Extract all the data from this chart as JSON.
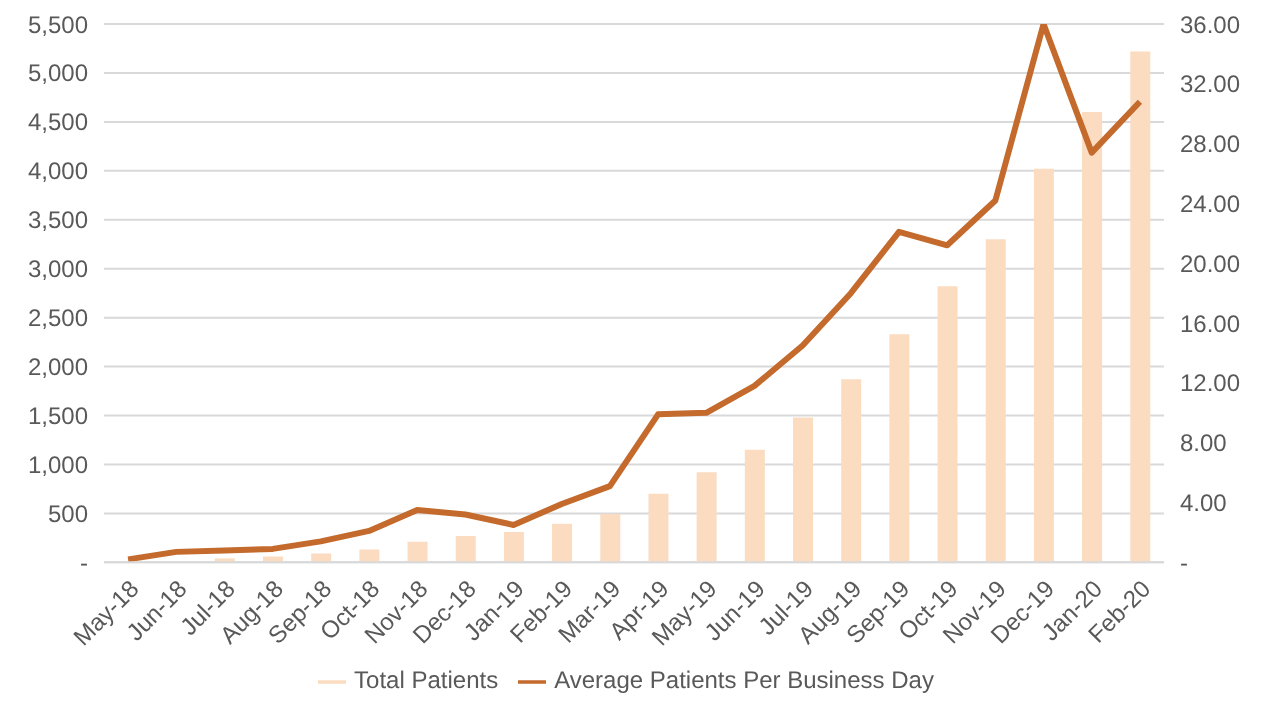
{
  "chart_data": {
    "type": "bar",
    "categories": [
      "May-18",
      "Jun-18",
      "Jul-18",
      "Aug-18",
      "Sep-18",
      "Oct-18",
      "Nov-18",
      "Dec-18",
      "Jan-19",
      "Feb-19",
      "Mar-19",
      "Apr-19",
      "May-19",
      "Jun-19",
      "Jul-19",
      "Aug-19",
      "Sep-19",
      "Oct-19",
      "Nov-19",
      "Dec-19",
      "Jan-20",
      "Feb-20"
    ],
    "series": [
      {
        "name": "Total Patients",
        "color": "#fbdcc0",
        "values": [
          null,
          null,
          40,
          60,
          90,
          130,
          210,
          270,
          310,
          395,
          495,
          700,
          920,
          1150,
          1480,
          1870,
          2330,
          2820,
          3300,
          4020,
          4600,
          5220
        ]
      },
      {
        "name": "Average Patients Per Business Day",
        "type": "line",
        "axis": "y2",
        "color": "#c46a2c",
        "values": [
          0.2,
          0.7,
          0.8,
          0.9,
          1.4,
          2.1,
          3.5,
          3.2,
          2.5,
          3.9,
          5.1,
          9.9,
          10,
          11.8,
          14.5,
          18,
          22.1,
          21.2,
          24.2,
          36,
          27.4,
          30.8
        ]
      }
    ],
    "ylim": [
      0,
      5500
    ],
    "yticks": [
      {
        "value": 0,
        "label": "-"
      },
      {
        "value": 500,
        "label": "500"
      },
      {
        "value": 1000,
        "label": "1,000"
      },
      {
        "value": 1500,
        "label": "1,500"
      },
      {
        "value": 2000,
        "label": "2,000"
      },
      {
        "value": 2500,
        "label": "2,500"
      },
      {
        "value": 3000,
        "label": "3,000"
      },
      {
        "value": 3500,
        "label": "3,500"
      },
      {
        "value": 4000,
        "label": "4,000"
      },
      {
        "value": 4500,
        "label": "4,500"
      },
      {
        "value": 5000,
        "label": "5,000"
      },
      {
        "value": 5500,
        "label": "5,500"
      }
    ],
    "y2lim": [
      0,
      36
    ],
    "y2ticks": [
      {
        "value": 0,
        "label": "-"
      },
      {
        "value": 4,
        "label": "4.00"
      },
      {
        "value": 8,
        "label": "8.00"
      },
      {
        "value": 12,
        "label": "12.00"
      },
      {
        "value": 16,
        "label": "16.00"
      },
      {
        "value": 20,
        "label": "20.00"
      },
      {
        "value": 24,
        "label": "24.00"
      },
      {
        "value": 28,
        "label": "28.00"
      },
      {
        "value": 32,
        "label": "32.00"
      },
      {
        "value": 36,
        "label": "36.00"
      }
    ],
    "grid": "y",
    "legend": "bottom",
    "marker": "none",
    "line_style": "solid"
  }
}
